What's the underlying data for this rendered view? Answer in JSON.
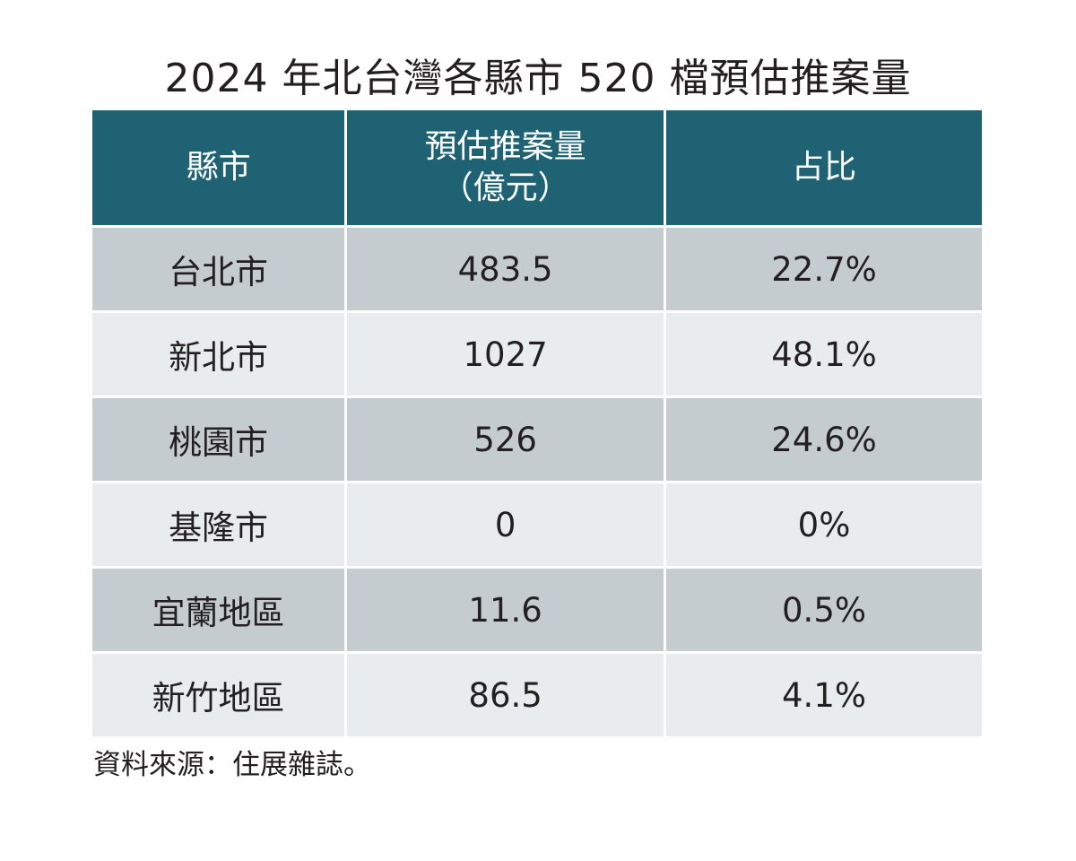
{
  "title": "2024 年北台灣各縣市 520 檔預估推案量",
  "source": "資料來源：住展雜誌。",
  "colors": {
    "header_bg": "#1e6273",
    "row_dark": "#c4ccd0",
    "row_light": "#e8ecee"
  },
  "chart_data": {
    "type": "table",
    "title": "2024 年北台灣各縣市 520 檔預估推案量",
    "columns": [
      "縣市",
      "預估推案量（億元）",
      "占比"
    ],
    "header": {
      "city": "縣市",
      "volume_line1": "預估推案量",
      "volume_line2": "（億元）",
      "share": "占比"
    },
    "rows": [
      {
        "city": "台北市",
        "volume": "483.5",
        "share": "22.7%"
      },
      {
        "city": "新北市",
        "volume": "1027",
        "share": "48.1%"
      },
      {
        "city": "桃園市",
        "volume": "526",
        "share": "24.6%"
      },
      {
        "city": "基隆市",
        "volume": "0",
        "share": "0%"
      },
      {
        "city": "宜蘭地區",
        "volume": "11.6",
        "share": "0.5%"
      },
      {
        "city": "新竹地區",
        "volume": "86.5",
        "share": "4.1%"
      }
    ]
  }
}
